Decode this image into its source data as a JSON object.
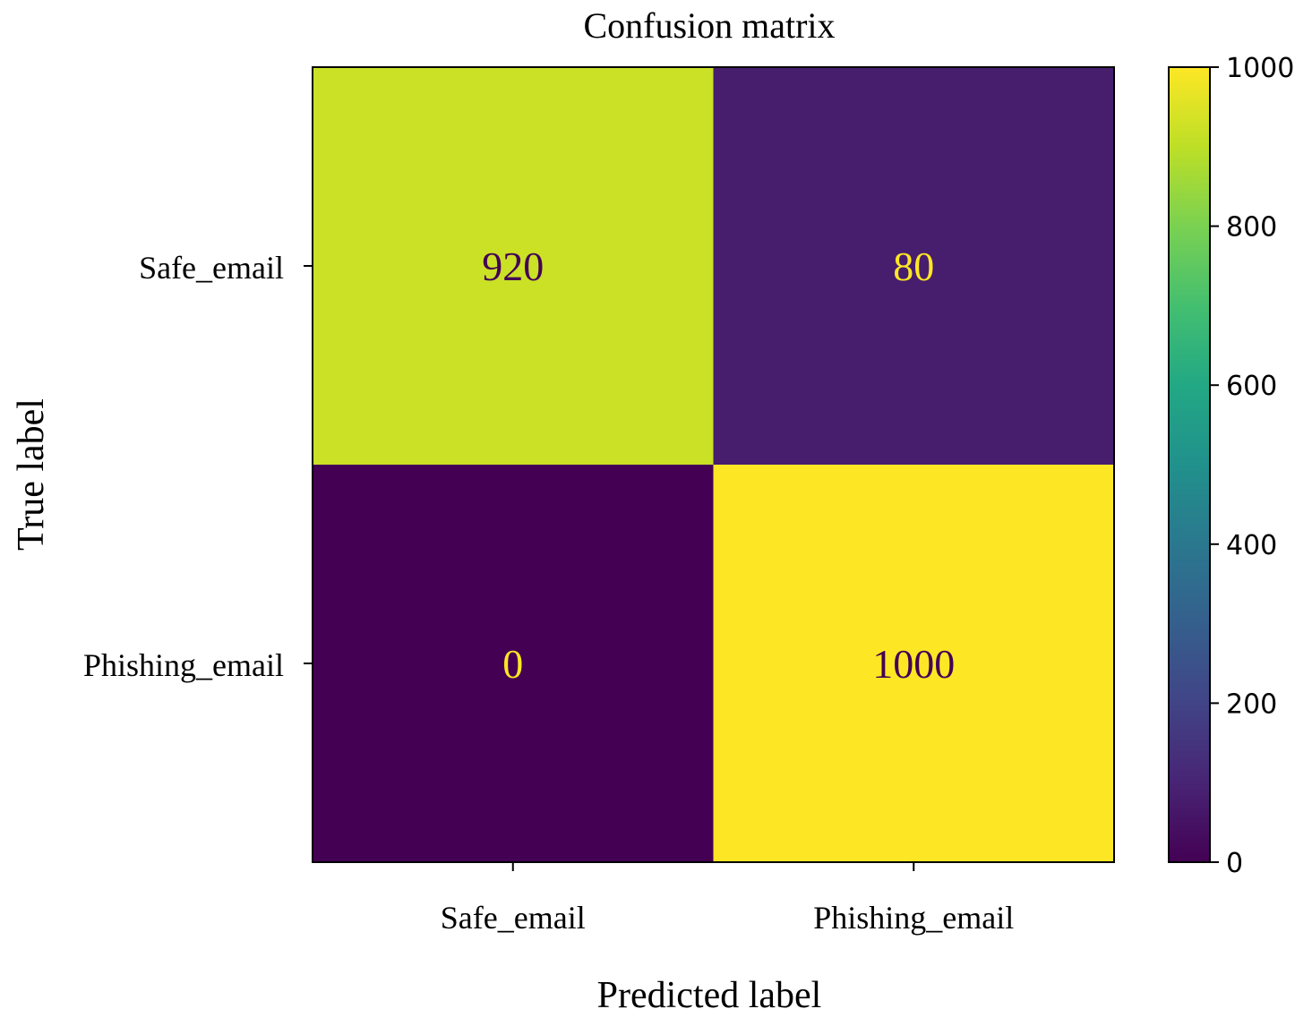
{
  "chart_data": {
    "type": "heatmap",
    "title": "Confusion matrix",
    "xlabel": "Predicted label",
    "ylabel": "True label",
    "x_categories": [
      "Safe_email",
      "Phishing_email"
    ],
    "y_categories": [
      "Safe_email",
      "Phishing_email"
    ],
    "values": [
      [
        920,
        80
      ],
      [
        0,
        1000
      ]
    ],
    "colormap": "viridis",
    "colorbar": {
      "min": 0,
      "max": 1000,
      "ticks": [
        "0",
        "200",
        "400",
        "600",
        "800",
        "1000"
      ]
    },
    "grid": false,
    "colors": {
      "low": "#440154",
      "high": "#fde725",
      "text_on_dark": "#fde725",
      "text_on_light": "#440154"
    }
  }
}
